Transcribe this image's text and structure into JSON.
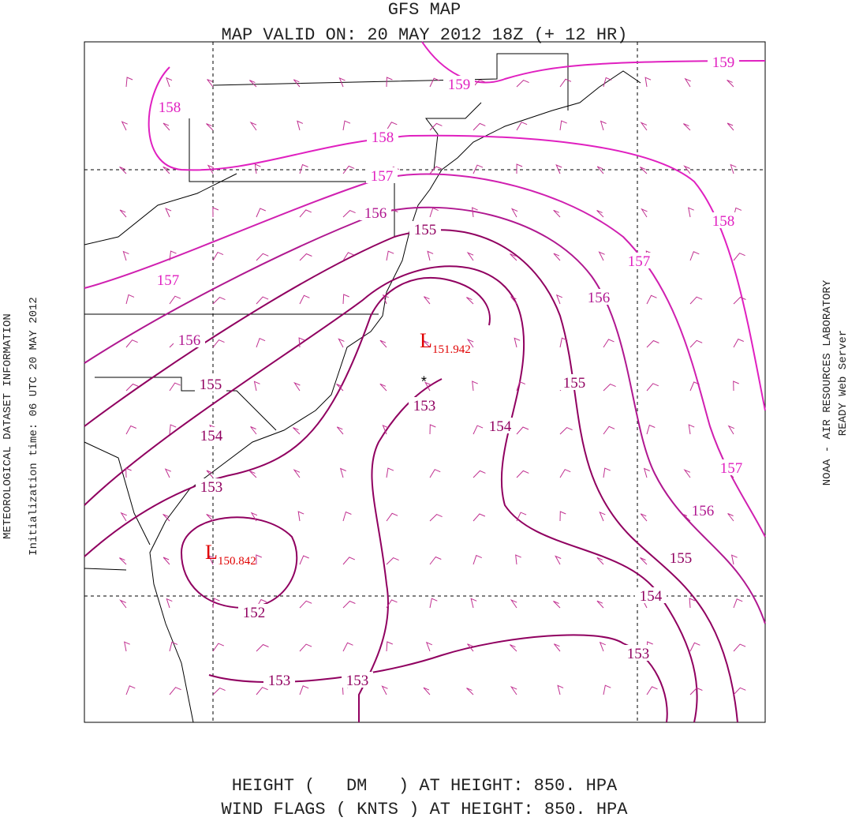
{
  "title": "GFS MAP",
  "subtitle": "MAP VALID ON: 20 MAY 2012 18Z (+ 12 HR)",
  "footer": [
    "HEIGHT (   DM   ) AT HEIGHT: 850. HPA",
    "WIND FLAGS ( KNTS ) AT HEIGHT: 850. HPA"
  ],
  "left_text": [
    "METEOROLOGICAL DATASET INFORMATION",
    "Initialization time: 06 UTC 20 MAY 2012"
  ],
  "right_text": [
    "NOAA - AIR RESOURCES LABORATORY",
    "READY Web Server"
  ],
  "contour_labels": [
    159,
    159,
    158,
    158,
    158,
    157,
    157,
    157,
    157,
    156,
    156,
    156,
    156,
    155,
    155,
    155,
    155,
    154,
    154,
    154,
    153,
    153,
    153,
    153,
    153,
    152
  ],
  "lows": [
    {
      "symbol": "L",
      "value": 151.942
    },
    {
      "symbol": "L",
      "value": 150.842
    }
  ]
}
